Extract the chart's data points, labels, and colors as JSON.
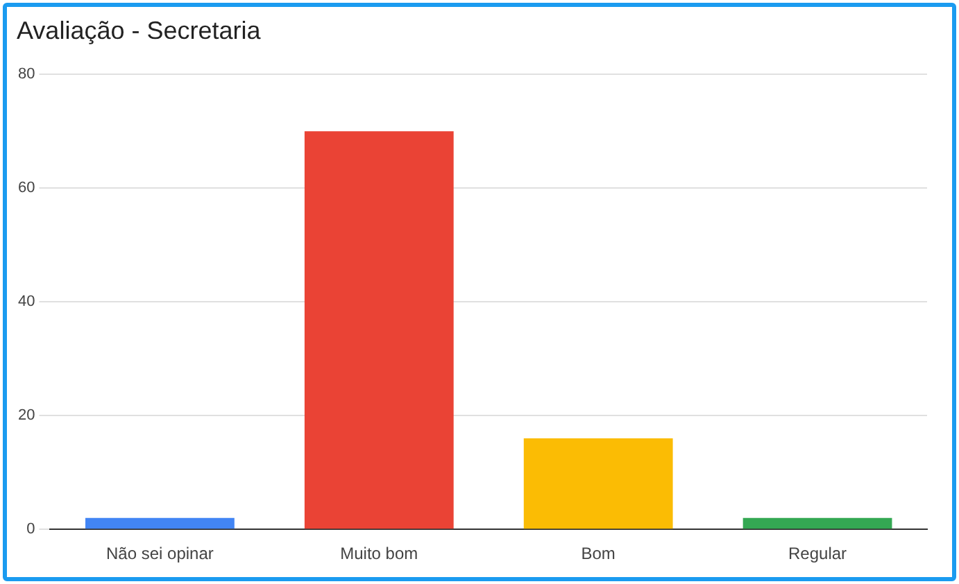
{
  "chart_data": {
    "type": "bar",
    "title": "Avaliação - Secretaria",
    "categories": [
      "Não sei opinar",
      "Muito bom",
      "Bom",
      "Regular"
    ],
    "values": [
      2,
      70,
      16,
      2
    ],
    "colors": [
      "#4285f4",
      "#ea4335",
      "#fbbc04",
      "#34a853"
    ],
    "ylim": [
      0,
      80
    ],
    "yticks": [
      0,
      20,
      40,
      60,
      80
    ],
    "grid": "y",
    "legend": false
  }
}
